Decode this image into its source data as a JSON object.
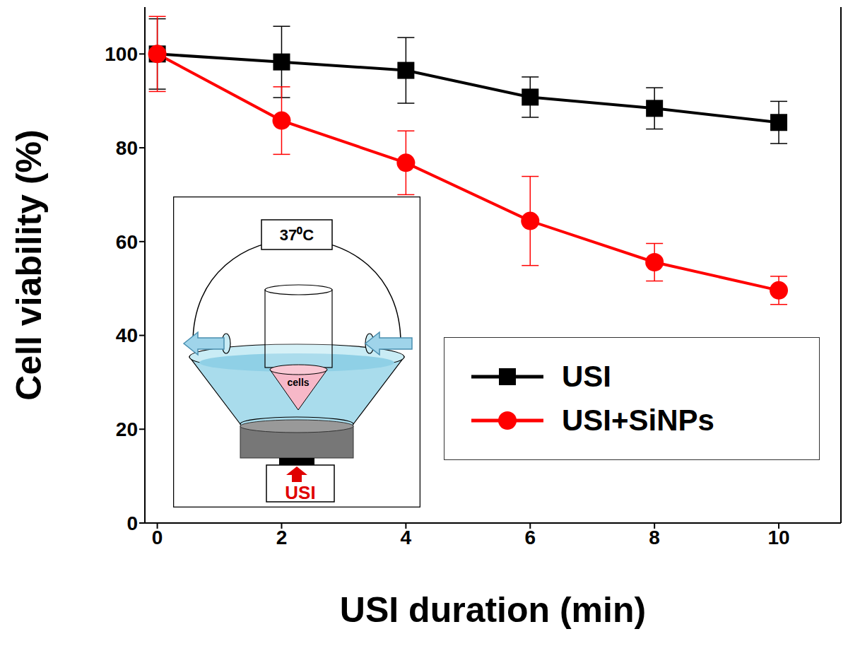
{
  "chart_data": {
    "type": "line",
    "x_label": "USI duration (min)",
    "y_label": "Cell viability (%)",
    "x": [
      0,
      2,
      4,
      6,
      8,
      10
    ],
    "series": [
      {
        "name": "USI",
        "color": "#000000",
        "marker": "square",
        "values": [
          100,
          98.3,
          96.5,
          90.8,
          88.4,
          85.4
        ],
        "errors": [
          7.5,
          7.6,
          7,
          4.3,
          4.4,
          4.5
        ]
      },
      {
        "name": "USI+SiNPs",
        "color": "#ff0000",
        "marker": "circle",
        "values": [
          100,
          85.8,
          76.8,
          64.4,
          55.6,
          49.6
        ],
        "errors": [
          8,
          7.2,
          6.8,
          9.5,
          4,
          3
        ]
      }
    ],
    "xlim": [
      -0.2,
      11
    ],
    "xticks": [
      0,
      2,
      4,
      6,
      8,
      10
    ],
    "ylim": [
      0,
      110
    ],
    "yticks": [
      0,
      20,
      40,
      60,
      80,
      100
    ],
    "legend": "lower right",
    "annotations": [
      "37⁰C",
      "cells",
      "USI"
    ]
  }
}
